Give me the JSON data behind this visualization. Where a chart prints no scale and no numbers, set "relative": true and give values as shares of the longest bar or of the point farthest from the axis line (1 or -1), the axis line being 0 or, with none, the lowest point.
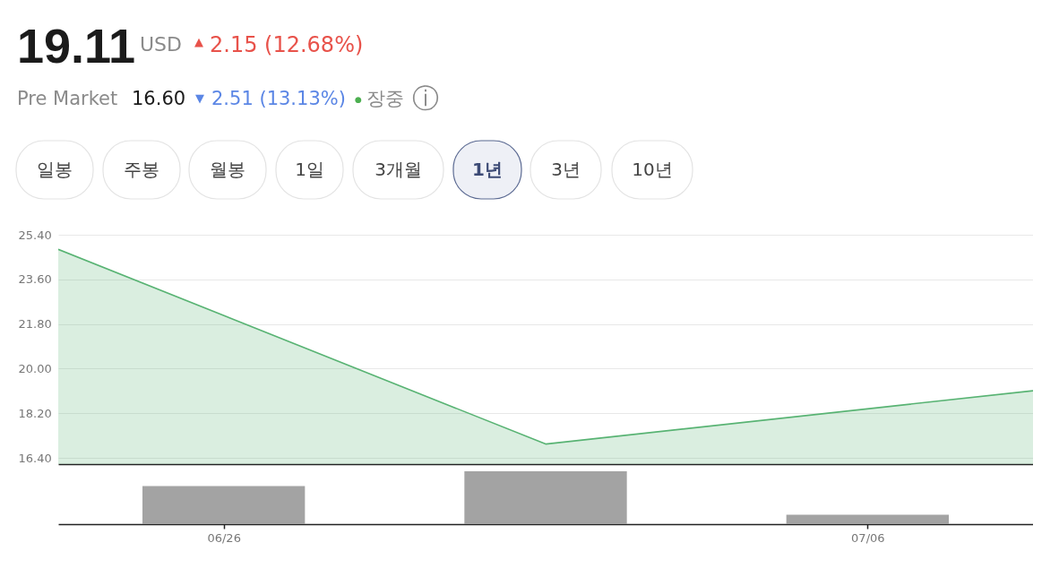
{
  "chart_data": [
    {
      "type": "other",
      "title": "19.11",
      "annotations": [
        "USD",
        "▲",
        "2.15 (12.68%)",
        "Pre Market",
        "16.60",
        "▼",
        "2.51 (13.13%)",
        "●",
        "장중",
        "ⓘ",
        "일봉",
        "주봉",
        "월봉",
        "1일",
        "3개월",
        "1년",
        "3년",
        "10년"
      ]
    },
    {
      "type": "area",
      "categories": [
        null,
        null,
        null
      ],
      "series": [
        {
          "color": "#58b373",
          "values": [
            24.81,
            16.96,
            19.11
          ]
        }
      ],
      "ylim": [
        16.15,
        25.4
      ],
      "yticks": [
        {
          "value": 16.4,
          "label": "16.40"
        },
        {
          "value": 18.2,
          "label": "18.20"
        },
        {
          "value": 20,
          "label": "20.00"
        },
        {
          "value": 21.8,
          "label": "21.80"
        },
        {
          "value": 23.6,
          "label": "23.60"
        },
        {
          "value": 25.4,
          "label": "25.40"
        }
      ],
      "grid": "y",
      "tick_labels": "y"
    },
    {
      "type": "bar",
      "categories": [
        "06/26",
        null,
        "07/06"
      ],
      "values": [
        0.72,
        1,
        0.18
      ],
      "color": "#a3a3a3",
      "relative": true,
      "tick_labels": "x"
    }
  ]
}
